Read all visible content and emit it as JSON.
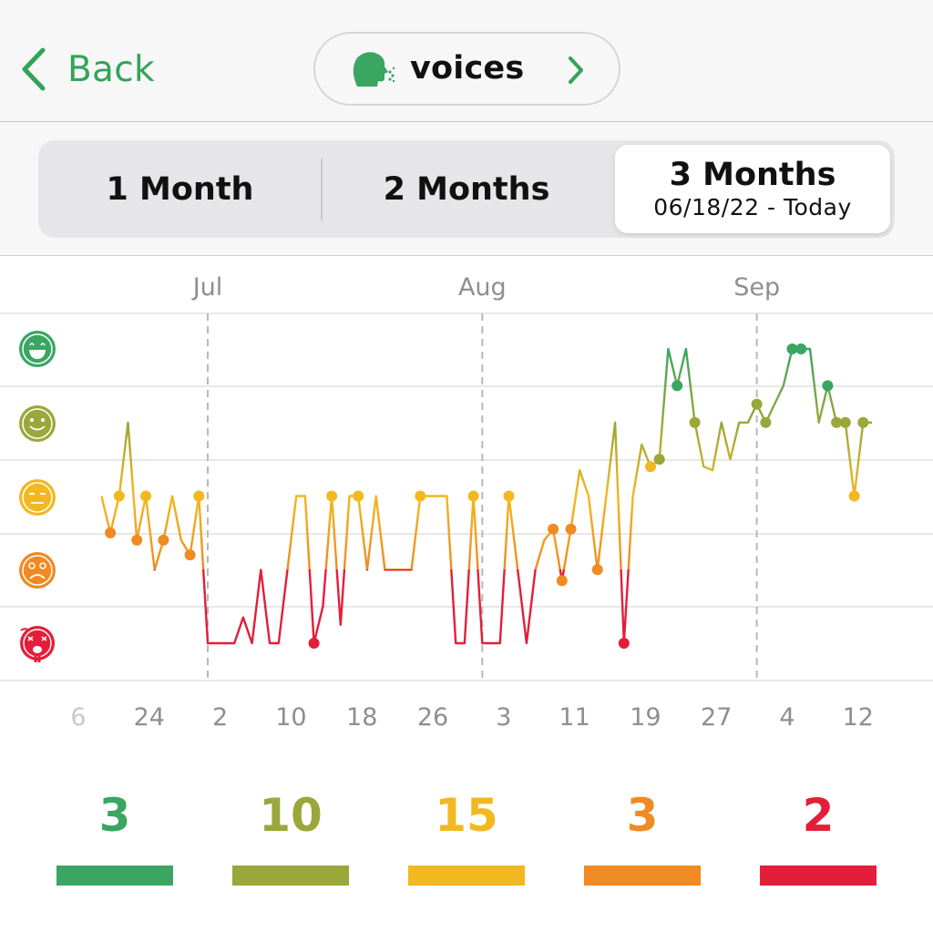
{
  "nav": {
    "back_label": "Back",
    "topic_label": "voices",
    "topic_icon": "speaking-head-icon"
  },
  "range_selector": {
    "options": [
      {
        "label": "1 Month"
      },
      {
        "label": "2 Months"
      },
      {
        "label": "3 Months",
        "subtitle": "06/18/22 - Today",
        "selected": true
      }
    ]
  },
  "mood_levels": [
    {
      "name": "great",
      "icon": "grinning-face-icon",
      "color": "#3aa662"
    },
    {
      "name": "good",
      "icon": "smiling-face-icon",
      "color": "#9aa73a"
    },
    {
      "name": "okay",
      "icon": "neutral-face-icon",
      "color": "#f2b81f"
    },
    {
      "name": "bad",
      "icon": "frowning-face-icon",
      "color": "#f08a22"
    },
    {
      "name": "awful",
      "icon": "distressed-face-icon",
      "color": "#e41e3a"
    }
  ],
  "chart_data": {
    "type": "line",
    "months": [
      "Jul",
      "Aug",
      "Sep"
    ],
    "x_ticks": [
      "6",
      "24",
      "2",
      "10",
      "18",
      "26",
      "3",
      "11",
      "19",
      "27",
      "4",
      "12"
    ],
    "y_scale": "mood level 1 (awful) to 5 (great)",
    "grid": true,
    "series": [
      {
        "points": [
          {
            "x": "06-19",
            "y": 3.0
          },
          {
            "x": "06-20",
            "y": 2.5,
            "dot": true
          },
          {
            "x": "06-21",
            "y": 3.0,
            "dot": true
          },
          {
            "x": "06-22",
            "y": 4.0
          },
          {
            "x": "06-23",
            "y": 2.4,
            "dot": true
          },
          {
            "x": "06-24",
            "y": 3.0,
            "dot": true
          },
          {
            "x": "06-25",
            "y": 2.0
          },
          {
            "x": "06-26",
            "y": 2.4,
            "dot": true
          },
          {
            "x": "06-27",
            "y": 3.0
          },
          {
            "x": "06-28",
            "y": 2.4
          },
          {
            "x": "06-29",
            "y": 2.2,
            "dot": true
          },
          {
            "x": "06-30",
            "y": 3.0,
            "dot": true
          },
          {
            "x": "07-01",
            "y": 1.0
          },
          {
            "x": "07-04",
            "y": 1.0
          },
          {
            "x": "07-05",
            "y": 1.35
          },
          {
            "x": "07-06",
            "y": 1.0
          },
          {
            "x": "07-07",
            "y": 2.0
          },
          {
            "x": "07-08",
            "y": 1.0
          },
          {
            "x": "07-09",
            "y": 1.0
          },
          {
            "x": "07-10",
            "y": 2.0
          },
          {
            "x": "07-11",
            "y": 3.0
          },
          {
            "x": "07-12",
            "y": 3.0
          },
          {
            "x": "07-13",
            "y": 1.0,
            "dot": true
          },
          {
            "x": "07-14",
            "y": 1.5
          },
          {
            "x": "07-15",
            "y": 3.0,
            "dot": true
          },
          {
            "x": "07-16",
            "y": 1.25
          },
          {
            "x": "07-17",
            "y": 3.0
          },
          {
            "x": "07-18",
            "y": 3.0,
            "dot": true
          },
          {
            "x": "07-19",
            "y": 2.0
          },
          {
            "x": "07-20",
            "y": 3.0
          },
          {
            "x": "07-21",
            "y": 2.0
          },
          {
            "x": "07-24",
            "y": 2.0
          },
          {
            "x": "07-25",
            "y": 3.0,
            "dot": true
          },
          {
            "x": "07-28",
            "y": 3.0
          },
          {
            "x": "07-29",
            "y": 1.0
          },
          {
            "x": "07-30",
            "y": 1.0
          },
          {
            "x": "07-31",
            "y": 3.0,
            "dot": true
          },
          {
            "x": "08-01",
            "y": 1.0
          },
          {
            "x": "08-03",
            "y": 1.0
          },
          {
            "x": "08-04",
            "y": 3.0,
            "dot": true
          },
          {
            "x": "08-05",
            "y": 2.0
          },
          {
            "x": "08-06",
            "y": 1.0
          },
          {
            "x": "08-07",
            "y": 2.0
          },
          {
            "x": "08-08",
            "y": 2.4
          },
          {
            "x": "08-09",
            "y": 2.55,
            "dot": true
          },
          {
            "x": "08-10",
            "y": 1.85,
            "dot": true
          },
          {
            "x": "08-11",
            "y": 2.55,
            "dot": true
          },
          {
            "x": "08-12",
            "y": 3.35
          },
          {
            "x": "08-13",
            "y": 3.0
          },
          {
            "x": "08-14",
            "y": 2.0,
            "dot": true
          },
          {
            "x": "08-15",
            "y": 3.0
          },
          {
            "x": "08-16",
            "y": 4.0
          },
          {
            "x": "08-17",
            "y": 1.0,
            "dot": true
          },
          {
            "x": "08-18",
            "y": 3.0
          },
          {
            "x": "08-19",
            "y": 3.7
          },
          {
            "x": "08-20",
            "y": 3.4,
            "dot": true
          },
          {
            "x": "08-21",
            "y": 3.5,
            "dot": true
          },
          {
            "x": "08-22",
            "y": 5.0
          },
          {
            "x": "08-23",
            "y": 4.5,
            "dot": true
          },
          {
            "x": "08-24",
            "y": 5.0
          },
          {
            "x": "08-25",
            "y": 4.0,
            "dot": true
          },
          {
            "x": "08-26",
            "y": 3.4
          },
          {
            "x": "08-27",
            "y": 3.35
          },
          {
            "x": "08-28",
            "y": 4.0
          },
          {
            "x": "08-29",
            "y": 3.5
          },
          {
            "x": "08-30",
            "y": 4.0
          },
          {
            "x": "08-31",
            "y": 4.0
          },
          {
            "x": "09-01",
            "y": 4.25,
            "dot": true
          },
          {
            "x": "09-02",
            "y": 4.0,
            "dot": true
          },
          {
            "x": "09-03",
            "y": 4.25
          },
          {
            "x": "09-04",
            "y": 4.5
          },
          {
            "x": "09-05",
            "y": 5.0,
            "dot": true
          },
          {
            "x": "09-06",
            "y": 5.0,
            "dot": true
          },
          {
            "x": "09-07",
            "y": 5.0
          },
          {
            "x": "09-08",
            "y": 4.0
          },
          {
            "x": "09-09",
            "y": 4.5,
            "dot": true
          },
          {
            "x": "09-10",
            "y": 4.0,
            "dot": true
          },
          {
            "x": "09-11",
            "y": 4.0,
            "dot": true
          },
          {
            "x": "09-12",
            "y": 3.0,
            "dot": true
          },
          {
            "x": "09-13",
            "y": 4.0,
            "dot": true
          },
          {
            "x": "09-14",
            "y": 4.0
          }
        ]
      }
    ]
  },
  "summary": [
    {
      "count": "3",
      "level": "great",
      "color": "#3aa662"
    },
    {
      "count": "10",
      "level": "good",
      "color": "#9aa73a"
    },
    {
      "count": "15",
      "level": "okay",
      "color": "#f2b81f"
    },
    {
      "count": "3",
      "level": "bad",
      "color": "#f08a22"
    },
    {
      "count": "2",
      "level": "awful",
      "color": "#e41e3a"
    }
  ]
}
